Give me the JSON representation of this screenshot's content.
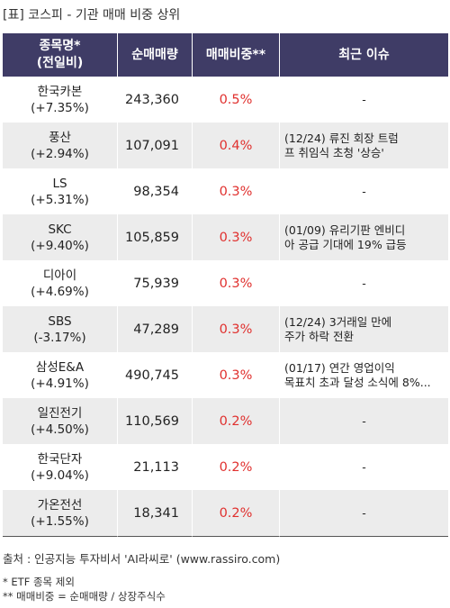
{
  "title": "[표] 코스피 - 기관 매매 비중 상위",
  "headers": {
    "name_line1": "종목명*",
    "name_line2": "(전일비)",
    "volume": "순매매량",
    "ratio": "매매비중**",
    "issue": "최근 이슈"
  },
  "rows": [
    {
      "name": "한국카본",
      "change": "(+7.35%)",
      "volume": "243,360",
      "ratio": "0.5%",
      "issue_line1": "-",
      "issue_line2": ""
    },
    {
      "name": "풍산",
      "change": "(+2.94%)",
      "volume": "107,091",
      "ratio": "0.4%",
      "issue_line1": "(12/24) 류진 회장 트럼",
      "issue_line2": "프 취임식 초청 '상승'"
    },
    {
      "name": "LS",
      "change": "(+5.31%)",
      "volume": "98,354",
      "ratio": "0.3%",
      "issue_line1": "-",
      "issue_line2": ""
    },
    {
      "name": "SKC",
      "change": "(+9.40%)",
      "volume": "105,859",
      "ratio": "0.3%",
      "issue_line1": "(01/09) 유리기판 엔비디",
      "issue_line2": "아 공급 기대에 19% 급등"
    },
    {
      "name": "디아이",
      "change": "(+4.69%)",
      "volume": "75,939",
      "ratio": "0.3%",
      "issue_line1": "-",
      "issue_line2": ""
    },
    {
      "name": "SBS",
      "change": "(-3.17%)",
      "volume": "47,289",
      "ratio": "0.3%",
      "issue_line1": "(12/24) 3거래일 만에",
      "issue_line2": "주가 하락 전환"
    },
    {
      "name": "삼성E&A",
      "change": "(+4.91%)",
      "volume": "490,745",
      "ratio": "0.3%",
      "issue_line1": "(01/17) 연간 영업이익",
      "issue_line2": "목표치 초과 달성 소식에 8%..."
    },
    {
      "name": "일진전기",
      "change": "(+4.50%)",
      "volume": "110,569",
      "ratio": "0.2%",
      "issue_line1": "-",
      "issue_line2": ""
    },
    {
      "name": "한국단자",
      "change": "(+9.04%)",
      "volume": "21,113",
      "ratio": "0.2%",
      "issue_line1": "-",
      "issue_line2": ""
    },
    {
      "name": "가온전선",
      "change": "(+1.55%)",
      "volume": "18,341",
      "ratio": "0.2%",
      "issue_line1": "-",
      "issue_line2": ""
    }
  ],
  "footer": {
    "source": "출처 : 인공지능 투자비서 'AI라씨로' (www.rassiro.com)",
    "note1": "* ETF 종목 제외",
    "note2": "** 매매비중 = 순매매량 / 상장주식수"
  },
  "colors": {
    "header_bg": "#3f3c66",
    "ratio_text": "#e0302e",
    "stripe_bg": "#ececec"
  }
}
